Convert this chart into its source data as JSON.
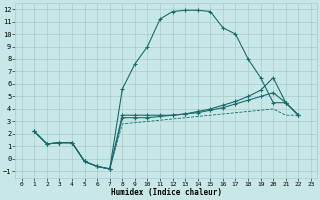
{
  "xlabel": "Humidex (Indice chaleur)",
  "xlim": [
    -0.5,
    23.5
  ],
  "ylim": [
    -1.5,
    12.5
  ],
  "xtick_vals": [
    0,
    1,
    2,
    3,
    4,
    5,
    6,
    7,
    8,
    9,
    10,
    11,
    12,
    13,
    14,
    15,
    16,
    17,
    18,
    19,
    20,
    21,
    22,
    23
  ],
  "ytick_vals": [
    -1,
    0,
    1,
    2,
    3,
    4,
    5,
    6,
    7,
    8,
    9,
    10,
    11,
    12
  ],
  "bg_color": "#c8e8e8",
  "grid_color": "#a8cccc",
  "line_color": "#1a6b6b",
  "curve1_x": [
    1,
    2,
    3,
    4,
    5,
    6,
    7,
    8,
    9,
    10,
    11,
    12,
    13,
    14,
    15,
    16,
    17,
    18,
    19,
    20,
    21,
    22
  ],
  "curve1_y": [
    2.2,
    1.2,
    1.3,
    1.3,
    -0.2,
    -0.6,
    -0.8,
    5.6,
    7.6,
    9.0,
    11.2,
    11.8,
    11.9,
    11.9,
    11.8,
    10.5,
    10.0,
    8.0,
    6.5,
    4.5,
    4.5,
    3.5
  ],
  "curve2_x": [
    1,
    2,
    3,
    4,
    5,
    6,
    7,
    8,
    9,
    10,
    11,
    12,
    13,
    14,
    15,
    16,
    17,
    18,
    19,
    20,
    21,
    22
  ],
  "curve2_y": [
    2.2,
    1.2,
    1.3,
    1.3,
    -0.2,
    -0.6,
    -0.8,
    3.5,
    3.5,
    3.5,
    3.5,
    3.5,
    3.6,
    3.8,
    4.0,
    4.3,
    4.6,
    5.0,
    5.5,
    6.5,
    4.5,
    3.5
  ],
  "curve3_x": [
    1,
    2,
    3,
    4,
    5,
    6,
    7,
    8,
    9,
    10,
    11,
    12,
    13,
    14,
    15,
    16,
    17,
    18,
    19,
    20,
    21,
    22
  ],
  "curve3_y": [
    2.2,
    1.2,
    1.3,
    1.3,
    -0.2,
    -0.6,
    -0.8,
    3.3,
    3.3,
    3.3,
    3.4,
    3.5,
    3.6,
    3.7,
    3.9,
    4.1,
    4.4,
    4.7,
    5.0,
    5.3,
    4.5,
    3.5
  ],
  "curve4_x": [
    1,
    2,
    3,
    4,
    5,
    6,
    7,
    8,
    9,
    10,
    11,
    12,
    13,
    14,
    15,
    16,
    17,
    18,
    19,
    20,
    21,
    22
  ],
  "curve4_y": [
    2.2,
    1.2,
    1.3,
    1.3,
    -0.2,
    -0.6,
    -0.8,
    2.8,
    2.9,
    3.0,
    3.1,
    3.2,
    3.3,
    3.4,
    3.5,
    3.6,
    3.7,
    3.8,
    3.9,
    4.0,
    3.5,
    3.5
  ]
}
